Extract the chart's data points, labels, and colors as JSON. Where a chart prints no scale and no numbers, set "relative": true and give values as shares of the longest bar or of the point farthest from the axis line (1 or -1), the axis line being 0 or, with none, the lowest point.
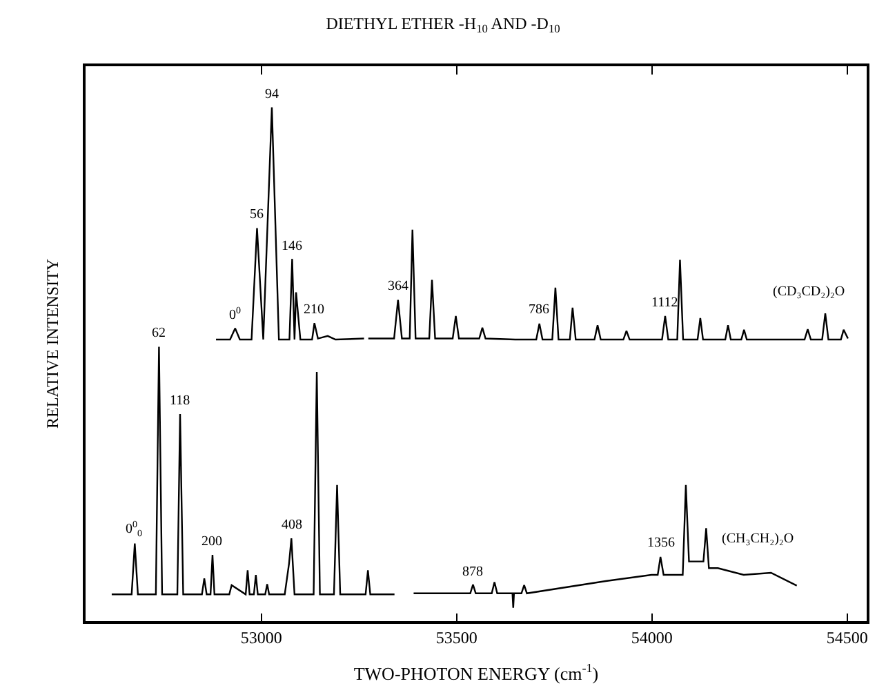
{
  "chart_data": {
    "type": "line",
    "title": "DIETHYL ETHER -H$_{10}$ AND -D$_{10}$",
    "xlabel": "TWO-PHOTON ENERGY (cm$^{-1}$)",
    "ylabel": "RELATIVE INTENSITY",
    "relative": true,
    "xlim": [
      52550,
      54550
    ],
    "xticks": [
      53000,
      53500,
      54000,
      54500
    ],
    "legend": false,
    "marker": "none",
    "line_style": "solid",
    "series": [
      {
        "name": "(CD₃CD₂)₂O",
        "color": "#000000",
        "x": [
          52884,
          52920,
          52933,
          52945,
          52975,
          52989,
          53005,
          53027,
          53045,
          53072,
          53079,
          53085,
          53089,
          53100,
          53130,
          53136,
          53145,
          53170,
          53190,
          53263,
          53268,
          53274,
          53340,
          53350,
          53360,
          53380,
          53387,
          53395,
          53430,
          53437,
          53445,
          53490,
          53498,
          53506,
          53558,
          53566,
          53574,
          53650,
          53704,
          53712,
          53720,
          53745,
          53753,
          53761,
          53790,
          53797,
          53805,
          53853,
          53861,
          53869,
          53927,
          53935,
          53943,
          54026,
          54034,
          54042,
          54065,
          54072,
          54080,
          54117,
          54124,
          54131,
          54188,
          54195,
          54202,
          54229,
          54236,
          54243,
          54320,
          54391,
          54399,
          54407,
          54436,
          54444,
          54452,
          54484,
          54491,
          54502
        ],
        "values": [
          0.548,
          0.548,
          0.57,
          0.548,
          0.548,
          0.765,
          0.548,
          1.0,
          0.548,
          0.548,
          0.705,
          0.548,
          0.64,
          0.548,
          0.548,
          0.58,
          0.55,
          0.555,
          0.548,
          0.55,
          null,
          0.55,
          0.55,
          0.625,
          0.55,
          0.55,
          0.762,
          0.55,
          0.55,
          0.664,
          0.55,
          0.55,
          0.594,
          0.55,
          0.55,
          0.571,
          0.55,
          0.548,
          0.548,
          0.579,
          0.548,
          0.548,
          0.649,
          0.548,
          0.548,
          0.61,
          0.548,
          0.548,
          0.576,
          0.548,
          0.548,
          0.565,
          0.548,
          0.548,
          0.594,
          0.548,
          0.548,
          0.703,
          0.548,
          0.548,
          0.59,
          0.548,
          0.548,
          0.576,
          0.548,
          0.548,
          0.567,
          0.548,
          0.548,
          0.548,
          0.568,
          0.548,
          0.548,
          0.599,
          0.548,
          0.548,
          0.567,
          0.55
        ]
      },
      {
        "name": "(CH₃CH₂)₂O",
        "color": "#000000",
        "x": [
          52617,
          52668,
          52676,
          52684,
          52730,
          52738,
          52746,
          52785,
          52792,
          52800,
          52848,
          52854,
          52860,
          52870,
          52875,
          52880,
          52918,
          52924,
          52960,
          52965,
          52970,
          52981,
          52986,
          52991,
          53010,
          53015,
          53020,
          53060,
          53071,
          53077,
          53085,
          53134,
          53142,
          53150,
          53186,
          53194,
          53202,
          53267,
          53273,
          53279,
          53341,
          53365,
          53390,
          53535,
          53542,
          53549,
          53590,
          53597,
          53604,
          53643,
          53645,
          53647,
          53666,
          53673,
          53680,
          53882,
          53999,
          54015,
          54022,
          54030,
          54046,
          54079,
          54087,
          54095,
          54112,
          54132,
          54139,
          54146,
          54169,
          54235,
          54305,
          54371
        ],
        "values": [
          0.052,
          0.052,
          0.151,
          0.052,
          0.052,
          0.534,
          0.052,
          0.052,
          0.403,
          0.052,
          0.052,
          0.083,
          0.052,
          0.052,
          0.129,
          0.052,
          0.052,
          0.07,
          0.052,
          0.099,
          0.052,
          0.052,
          0.09,
          0.052,
          0.052,
          0.072,
          0.052,
          0.052,
          0.112,
          0.161,
          0.052,
          0.052,
          0.485,
          0.052,
          0.052,
          0.265,
          0.052,
          0.052,
          0.099,
          0.052,
          0.052,
          null,
          0.054,
          0.054,
          0.071,
          0.054,
          0.054,
          0.076,
          0.054,
          0.054,
          0.026,
          0.054,
          0.054,
          0.07,
          0.054,
          0.078,
          0.09,
          0.09,
          0.125,
          0.09,
          0.09,
          0.09,
          0.265,
          0.116,
          0.116,
          0.116,
          0.181,
          0.103,
          0.103,
          0.09,
          0.094,
          0.069
        ]
      }
    ],
    "annotations": [
      {
        "text": "0$^{0}$",
        "x": 52933,
        "y": 0.57
      },
      {
        "text": "56",
        "x": 52989,
        "y": 0.765
      },
      {
        "text": "94",
        "x": 53027,
        "y": 1.0
      },
      {
        "text": "146",
        "x": 53079,
        "y": 0.705
      },
      {
        "text": "210",
        "x": 53136,
        "y": 0.58
      },
      {
        "text": "364",
        "x": 53350,
        "y": 0.625
      },
      {
        "text": "786",
        "x": 53712,
        "y": 0.579
      },
      {
        "text": "1112",
        "x": 54034,
        "y": 0.594
      },
      {
        "text": "0$^{0}$$_{0}$",
        "x": 52676,
        "y": 0.151
      },
      {
        "text": "62",
        "x": 52738,
        "y": 0.534
      },
      {
        "text": "118",
        "x": 52792,
        "y": 0.403
      },
      {
        "text": "200",
        "x": 52875,
        "y": 0.129
      },
      {
        "text": "408",
        "x": 53077,
        "y": 0.161
      },
      {
        "text": "878",
        "x": 53542,
        "y": 0.071
      },
      {
        "text": "1356",
        "x": 54022,
        "y": 0.125
      }
    ]
  }
}
